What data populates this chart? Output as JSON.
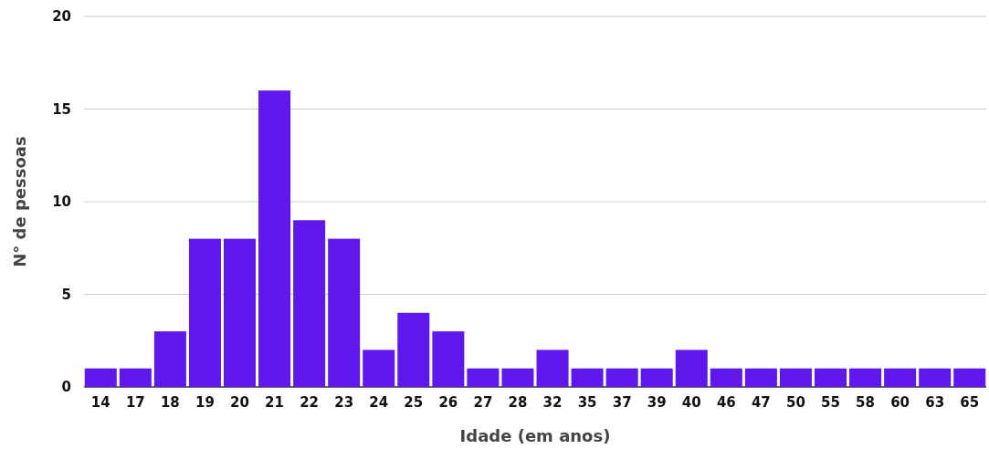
{
  "chart_data": {
    "type": "bar",
    "xlabel": "Idade (em anos)",
    "ylabel": "N° de pessoas",
    "categories": [
      "14",
      "17",
      "18",
      "19",
      "20",
      "21",
      "22",
      "23",
      "24",
      "25",
      "26",
      "27",
      "28",
      "32",
      "35",
      "37",
      "39",
      "40",
      "46",
      "47",
      "50",
      "55",
      "58",
      "60",
      "63",
      "65"
    ],
    "values": [
      1,
      1,
      3,
      8,
      8,
      16,
      9,
      8,
      2,
      4,
      3,
      1,
      1,
      2,
      1,
      1,
      1,
      2,
      1,
      1,
      1,
      1,
      1,
      1,
      1,
      1
    ],
    "color": "#5f17eb",
    "ylim": [
      0,
      20
    ],
    "yticks": [
      0,
      5,
      10,
      15,
      20
    ],
    "grid": "y"
  }
}
